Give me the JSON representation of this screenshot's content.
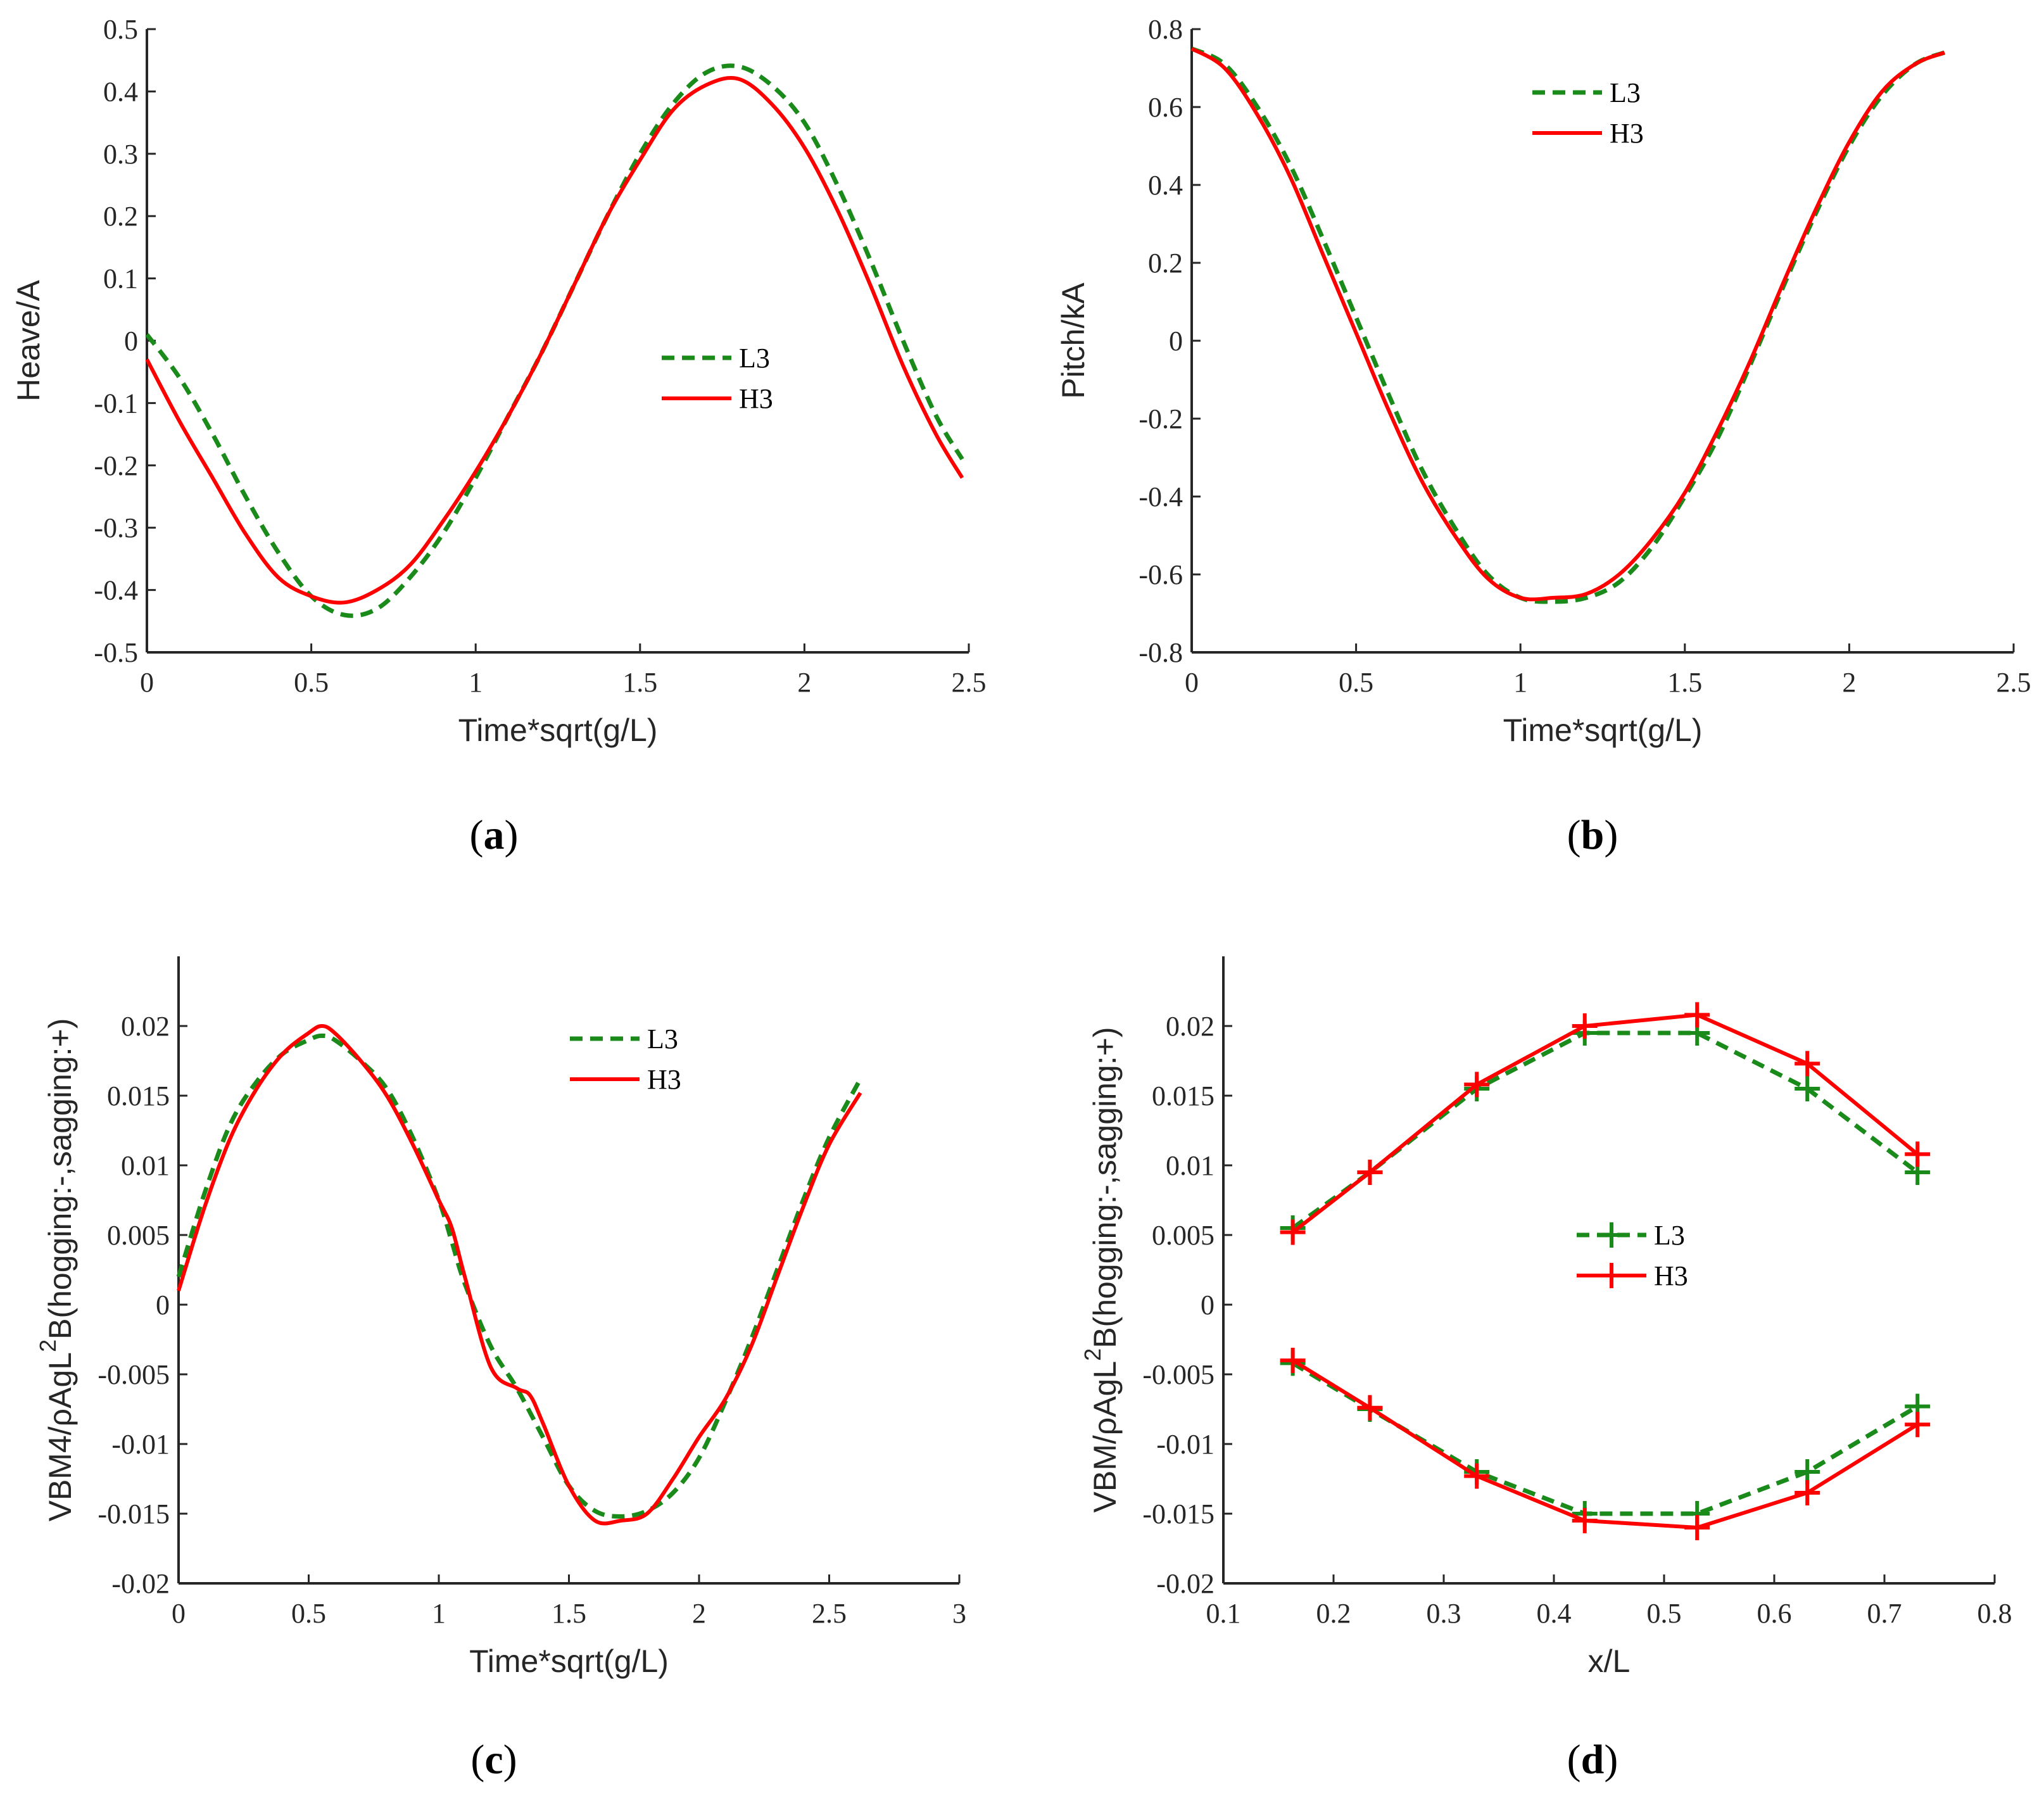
{
  "colors": {
    "L3": "#1a8a1a",
    "H3": "#ff0000",
    "axis": "#262626"
  },
  "chart_data": [
    {
      "panel": "(a)",
      "panel_letter": "a",
      "type": "line",
      "xlabel": "Time*sqrt(g/L)",
      "ylabel": "Heave/A",
      "xlim": [
        0,
        2.5
      ],
      "ylim": [
        -0.5,
        0.5
      ],
      "xticks": [
        0,
        0.5,
        1,
        1.5,
        2,
        2.5
      ],
      "xtick_labels": [
        "0",
        "0.5",
        "1",
        "1.5",
        "2",
        "2.5"
      ],
      "yticks": [
        -0.5,
        -0.4,
        -0.3,
        -0.2,
        -0.1,
        0,
        0.1,
        0.2,
        0.3,
        0.4,
        0.5
      ],
      "ytick_labels": [
        "-0.5",
        "-0.4",
        "-0.3",
        "-0.2",
        "-0.1",
        "0",
        "0.1",
        "0.2",
        "0.3",
        "0.4",
        "0.5"
      ],
      "legend_position": "center-right",
      "series": [
        {
          "name": "L3",
          "style": "dashed",
          "color": "#1a8a1a",
          "x": [
            0,
            0.1,
            0.2,
            0.3,
            0.4,
            0.5,
            0.6,
            0.7,
            0.8,
            0.9,
            1.0,
            1.1,
            1.2,
            1.3,
            1.4,
            1.5,
            1.6,
            1.7,
            1.8,
            1.9,
            2.0,
            2.1,
            2.2,
            2.3,
            2.4,
            2.48
          ],
          "y": [
            0.01,
            -0.06,
            -0.15,
            -0.25,
            -0.34,
            -0.41,
            -0.44,
            -0.43,
            -0.38,
            -0.31,
            -0.22,
            -0.12,
            -0.02,
            0.09,
            0.2,
            0.3,
            0.38,
            0.43,
            0.44,
            0.41,
            0.35,
            0.25,
            0.13,
            0.0,
            -0.12,
            -0.19
          ]
        },
        {
          "name": "H3",
          "style": "solid",
          "color": "#ff0000",
          "x": [
            0,
            0.1,
            0.2,
            0.3,
            0.4,
            0.5,
            0.6,
            0.7,
            0.8,
            0.9,
            1.0,
            1.1,
            1.2,
            1.3,
            1.4,
            1.5,
            1.6,
            1.7,
            1.8,
            1.9,
            2.0,
            2.1,
            2.2,
            2.3,
            2.4,
            2.48
          ],
          "y": [
            -0.03,
            -0.13,
            -0.22,
            -0.31,
            -0.38,
            -0.41,
            -0.42,
            -0.4,
            -0.36,
            -0.29,
            -0.21,
            -0.12,
            -0.02,
            0.09,
            0.2,
            0.29,
            0.37,
            0.41,
            0.42,
            0.38,
            0.31,
            0.21,
            0.09,
            -0.04,
            -0.15,
            -0.22
          ]
        }
      ]
    },
    {
      "panel": "(b)",
      "panel_letter": "b",
      "type": "line",
      "xlabel": "Time*sqrt(g/L)",
      "ylabel": "Pitch/kA",
      "xlim": [
        0,
        2.5
      ],
      "ylim": [
        -0.8,
        0.8
      ],
      "xticks": [
        0,
        0.5,
        1,
        1.5,
        2,
        2.5
      ],
      "xtick_labels": [
        "0",
        "0.5",
        "1",
        "1.5",
        "2",
        "2.5"
      ],
      "yticks": [
        -0.8,
        -0.6,
        -0.4,
        -0.2,
        0,
        0.2,
        0.4,
        0.6,
        0.8
      ],
      "ytick_labels": [
        "-0.8",
        "-0.6",
        "-0.4",
        "-0.2",
        "0",
        "0.2",
        "0.4",
        "0.6",
        "0.8"
      ],
      "legend_position": "top-center",
      "series": [
        {
          "name": "L3",
          "style": "dashed",
          "color": "#1a8a1a",
          "x": [
            0,
            0.1,
            0.2,
            0.3,
            0.4,
            0.5,
            0.6,
            0.7,
            0.8,
            0.9,
            1.0,
            1.1,
            1.2,
            1.3,
            1.4,
            1.5,
            1.6,
            1.7,
            1.8,
            1.9,
            2.0,
            2.1,
            2.2,
            2.29
          ],
          "y": [
            0.75,
            0.71,
            0.6,
            0.45,
            0.26,
            0.06,
            -0.14,
            -0.33,
            -0.48,
            -0.6,
            -0.66,
            -0.67,
            -0.66,
            -0.62,
            -0.53,
            -0.4,
            -0.25,
            -0.06,
            0.14,
            0.33,
            0.5,
            0.63,
            0.71,
            0.74
          ]
        },
        {
          "name": "H3",
          "style": "solid",
          "color": "#ff0000",
          "x": [
            0,
            0.1,
            0.2,
            0.3,
            0.4,
            0.5,
            0.6,
            0.7,
            0.8,
            0.9,
            1.0,
            1.1,
            1.2,
            1.3,
            1.4,
            1.5,
            1.6,
            1.7,
            1.8,
            1.9,
            2.0,
            2.1,
            2.2,
            2.29
          ],
          "y": [
            0.75,
            0.7,
            0.58,
            0.42,
            0.22,
            0.02,
            -0.18,
            -0.36,
            -0.5,
            -0.61,
            -0.66,
            -0.66,
            -0.65,
            -0.6,
            -0.51,
            -0.39,
            -0.23,
            -0.05,
            0.15,
            0.34,
            0.51,
            0.64,
            0.71,
            0.74
          ]
        }
      ]
    },
    {
      "panel": "(c)",
      "panel_letter": "c",
      "type": "line",
      "xlabel": "Time*sqrt(g/L)",
      "ylabel": "VBM4/ρAgL",
      "ylabel_sup": "2",
      "ylabel_tail": "B(hogging:-,sagging:+)",
      "xlim": [
        0,
        3
      ],
      "ylim": [
        -0.02,
        0.025
      ],
      "xticks": [
        0,
        0.5,
        1,
        1.5,
        2,
        2.5,
        3
      ],
      "xtick_labels": [
        "0",
        "0.5",
        "1",
        "1.5",
        "2",
        "2.5",
        "3"
      ],
      "yticks": [
        -0.02,
        -0.015,
        -0.01,
        -0.005,
        0,
        0.005,
        0.01,
        0.015,
        0.02
      ],
      "ytick_labels": [
        "-0.02",
        "-0.015",
        "-0.01",
        "-0.005",
        "0",
        "0.005",
        "0.01",
        "0.015",
        "0.02"
      ],
      "legend_position": "top-center",
      "series": [
        {
          "name": "L3",
          "style": "dashed",
          "color": "#1a8a1a",
          "x": [
            0,
            0.1,
            0.2,
            0.3,
            0.4,
            0.5,
            0.55,
            0.6,
            0.7,
            0.8,
            0.9,
            1.0,
            1.05,
            1.1,
            1.2,
            1.3,
            1.4,
            1.5,
            1.6,
            1.7,
            1.8,
            1.9,
            2.0,
            2.1,
            2.2,
            2.3,
            2.4,
            2.5,
            2.62
          ],
          "y": [
            0.002,
            0.008,
            0.013,
            0.016,
            0.018,
            0.019,
            0.0193,
            0.019,
            0.0175,
            0.0155,
            0.012,
            0.0075,
            0.0045,
            0.0015,
            -0.003,
            -0.006,
            -0.0095,
            -0.013,
            -0.0148,
            -0.0152,
            -0.0148,
            -0.0135,
            -0.011,
            -0.007,
            -0.0025,
            0.0025,
            0.0075,
            0.012,
            0.0162
          ]
        },
        {
          "name": "H3",
          "style": "solid",
          "color": "#ff0000",
          "x": [
            0,
            0.1,
            0.2,
            0.3,
            0.4,
            0.5,
            0.55,
            0.6,
            0.7,
            0.8,
            0.9,
            1.0,
            1.05,
            1.1,
            1.2,
            1.3,
            1.35,
            1.4,
            1.5,
            1.6,
            1.7,
            1.8,
            1.9,
            2.0,
            2.1,
            2.2,
            2.3,
            2.4,
            2.5,
            2.62
          ],
          "y": [
            0.001,
            0.007,
            0.012,
            0.0155,
            0.018,
            0.0195,
            0.02,
            0.0195,
            0.0175,
            0.015,
            0.0115,
            0.0075,
            0.0055,
            0.002,
            -0.0045,
            -0.006,
            -0.0065,
            -0.0085,
            -0.013,
            -0.0155,
            -0.0155,
            -0.015,
            -0.0125,
            -0.0095,
            -0.0068,
            -0.003,
            0.002,
            0.007,
            0.0115,
            0.0152
          ]
        }
      ]
    },
    {
      "panel": "(d)",
      "panel_letter": "d",
      "type": "line",
      "xlabel": "x/L",
      "ylabel": "VBM/ρAgL",
      "ylabel_sup": "2",
      "ylabel_tail": "B(hogging:-,sagging:+)",
      "xlim": [
        0.1,
        0.8
      ],
      "ylim": [
        -0.02,
        0.025
      ],
      "xticks": [
        0.1,
        0.2,
        0.3,
        0.4,
        0.5,
        0.6,
        0.7,
        0.8
      ],
      "xtick_labels": [
        "0.1",
        "0.2",
        "0.3",
        "0.4",
        "0.5",
        "0.6",
        "0.7",
        "0.8"
      ],
      "yticks": [
        -0.02,
        -0.015,
        -0.01,
        -0.005,
        0,
        0.005,
        0.01,
        0.015,
        0.02
      ],
      "ytick_labels": [
        "-0.02",
        "-0.015",
        "-0.01",
        "-0.005",
        "0",
        "0.005",
        "0.01",
        "0.015",
        "0.02"
      ],
      "legend_position": "center",
      "markers": true,
      "series": [
        {
          "name": "L3",
          "style": "dashed",
          "color": "#1a8a1a",
          "segment": "sagging",
          "x": [
            0.163,
            0.233,
            0.33,
            0.428,
            0.53,
            0.63,
            0.73
          ],
          "y": [
            0.0055,
            0.0095,
            0.0155,
            0.0195,
            0.0195,
            0.0155,
            0.0095
          ]
        },
        {
          "name": "L3",
          "style": "dashed",
          "color": "#1a8a1a",
          "segment": "hogging",
          "x": [
            0.163,
            0.233,
            0.33,
            0.428,
            0.53,
            0.63,
            0.73
          ],
          "y": [
            -0.0042,
            -0.0075,
            -0.012,
            -0.015,
            -0.015,
            -0.012,
            -0.0073
          ]
        },
        {
          "name": "H3",
          "style": "solid",
          "color": "#ff0000",
          "segment": "sagging",
          "x": [
            0.163,
            0.233,
            0.33,
            0.428,
            0.53,
            0.63,
            0.73
          ],
          "y": [
            0.0052,
            0.0095,
            0.0158,
            0.02,
            0.0208,
            0.0173,
            0.0108
          ]
        },
        {
          "name": "H3",
          "style": "solid",
          "color": "#ff0000",
          "segment": "hogging",
          "x": [
            0.163,
            0.233,
            0.33,
            0.428,
            0.53,
            0.63,
            0.73
          ],
          "y": [
            -0.004,
            -0.0074,
            -0.0123,
            -0.0155,
            -0.016,
            -0.0135,
            -0.0086
          ]
        }
      ]
    }
  ]
}
